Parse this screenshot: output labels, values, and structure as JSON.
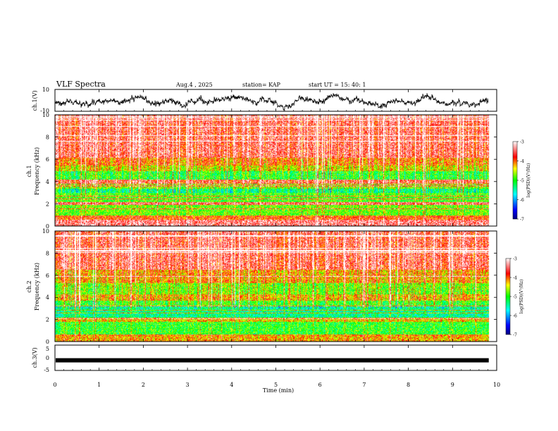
{
  "chart_data": {
    "type": "heatmap",
    "title": "VLF Spectra",
    "header": {
      "date": "Aug.4 , 2025",
      "station": "station= KAP",
      "start": "start UT = 15: 40: 1"
    },
    "x_axis": {
      "label": "Time (min)",
      "range": [
        0,
        10
      ],
      "ticks": [
        "0",
        "1",
        "2",
        "3",
        "4",
        "5",
        "6",
        "7",
        "8",
        "9",
        "10"
      ]
    },
    "panels": [
      {
        "name": "ch1-waveform",
        "type": "line",
        "ylabel": "ch.1(V)",
        "ylim": [
          -10,
          10
        ],
        "yticks": [
          "10",
          "-10"
        ],
        "data_end_min": 9.82,
        "series_color": "#000000"
      },
      {
        "name": "ch1-spectrogram",
        "type": "heatmap",
        "ylabel_top": "ch.1",
        "ylabel": "Frequency (kHz)",
        "ylim": [
          0,
          10
        ],
        "yticks": [
          "0",
          "2",
          "4",
          "6",
          "8",
          "10"
        ],
        "data_end_min": 9.82,
        "colorbar": {
          "label": "log(PSD)(V²/Hz)",
          "range": [
            -7,
            -3
          ],
          "ticks": [
            "-3",
            "-4",
            "-5",
            "-6",
            "-7"
          ]
        },
        "bands_khz": [
          {
            "from": 0.0,
            "to": 0.6,
            "level": -3.4
          },
          {
            "from": 0.6,
            "to": 1.0,
            "level": -3.9
          },
          {
            "from": 1.0,
            "to": 1.9,
            "level": -4.8
          },
          {
            "from": 1.9,
            "to": 2.2,
            "level": -3.5
          },
          {
            "from": 2.2,
            "to": 3.0,
            "level": -4.9
          },
          {
            "from": 3.0,
            "to": 3.4,
            "level": -5.3
          },
          {
            "from": 3.4,
            "to": 3.8,
            "level": -4.7
          },
          {
            "from": 3.8,
            "to": 4.2,
            "level": -3.6
          },
          {
            "from": 4.2,
            "to": 5.0,
            "level": -5.0
          },
          {
            "from": 5.0,
            "to": 5.5,
            "level": -4.4
          },
          {
            "from": 5.5,
            "to": 6.2,
            "level": -4.0
          },
          {
            "from": 6.2,
            "to": 10.0,
            "level": -3.5
          }
        ]
      },
      {
        "name": "ch2-spectrogram",
        "type": "heatmap",
        "ylabel_top": "ch.2",
        "ylabel": "Frequency (kHz)",
        "ylim": [
          0,
          10
        ],
        "yticks": [
          "0",
          "2",
          "4",
          "6",
          "8",
          "10"
        ],
        "data_end_min": 9.82,
        "colorbar": {
          "label": "log(PSD)(V²/Hz)",
          "range": [
            -7,
            -3
          ],
          "ticks": [
            "-3",
            "-4",
            "-5",
            "-6",
            "-7"
          ]
        },
        "bands_khz": [
          {
            "from": 0.0,
            "to": 0.6,
            "level": -4.2
          },
          {
            "from": 0.6,
            "to": 1.8,
            "level": -5.0
          },
          {
            "from": 1.8,
            "to": 2.2,
            "level": -4.3
          },
          {
            "from": 2.2,
            "to": 3.2,
            "level": -5.4
          },
          {
            "from": 3.2,
            "to": 3.7,
            "level": -4.9
          },
          {
            "from": 3.7,
            "to": 4.3,
            "level": -4.2
          },
          {
            "from": 4.3,
            "to": 5.3,
            "level": -4.7
          },
          {
            "from": 5.3,
            "to": 6.5,
            "level": -4.1
          },
          {
            "from": 6.5,
            "to": 10.0,
            "level": -3.5
          }
        ]
      },
      {
        "name": "ch3-waveform",
        "type": "line",
        "ylabel": "ch.3(V)",
        "ylim": [
          -5,
          5
        ],
        "yticks": [
          "5",
          "0",
          "-5"
        ],
        "data_end_min": 9.82,
        "series_level": -1,
        "series_color": "#000000"
      }
    ]
  }
}
